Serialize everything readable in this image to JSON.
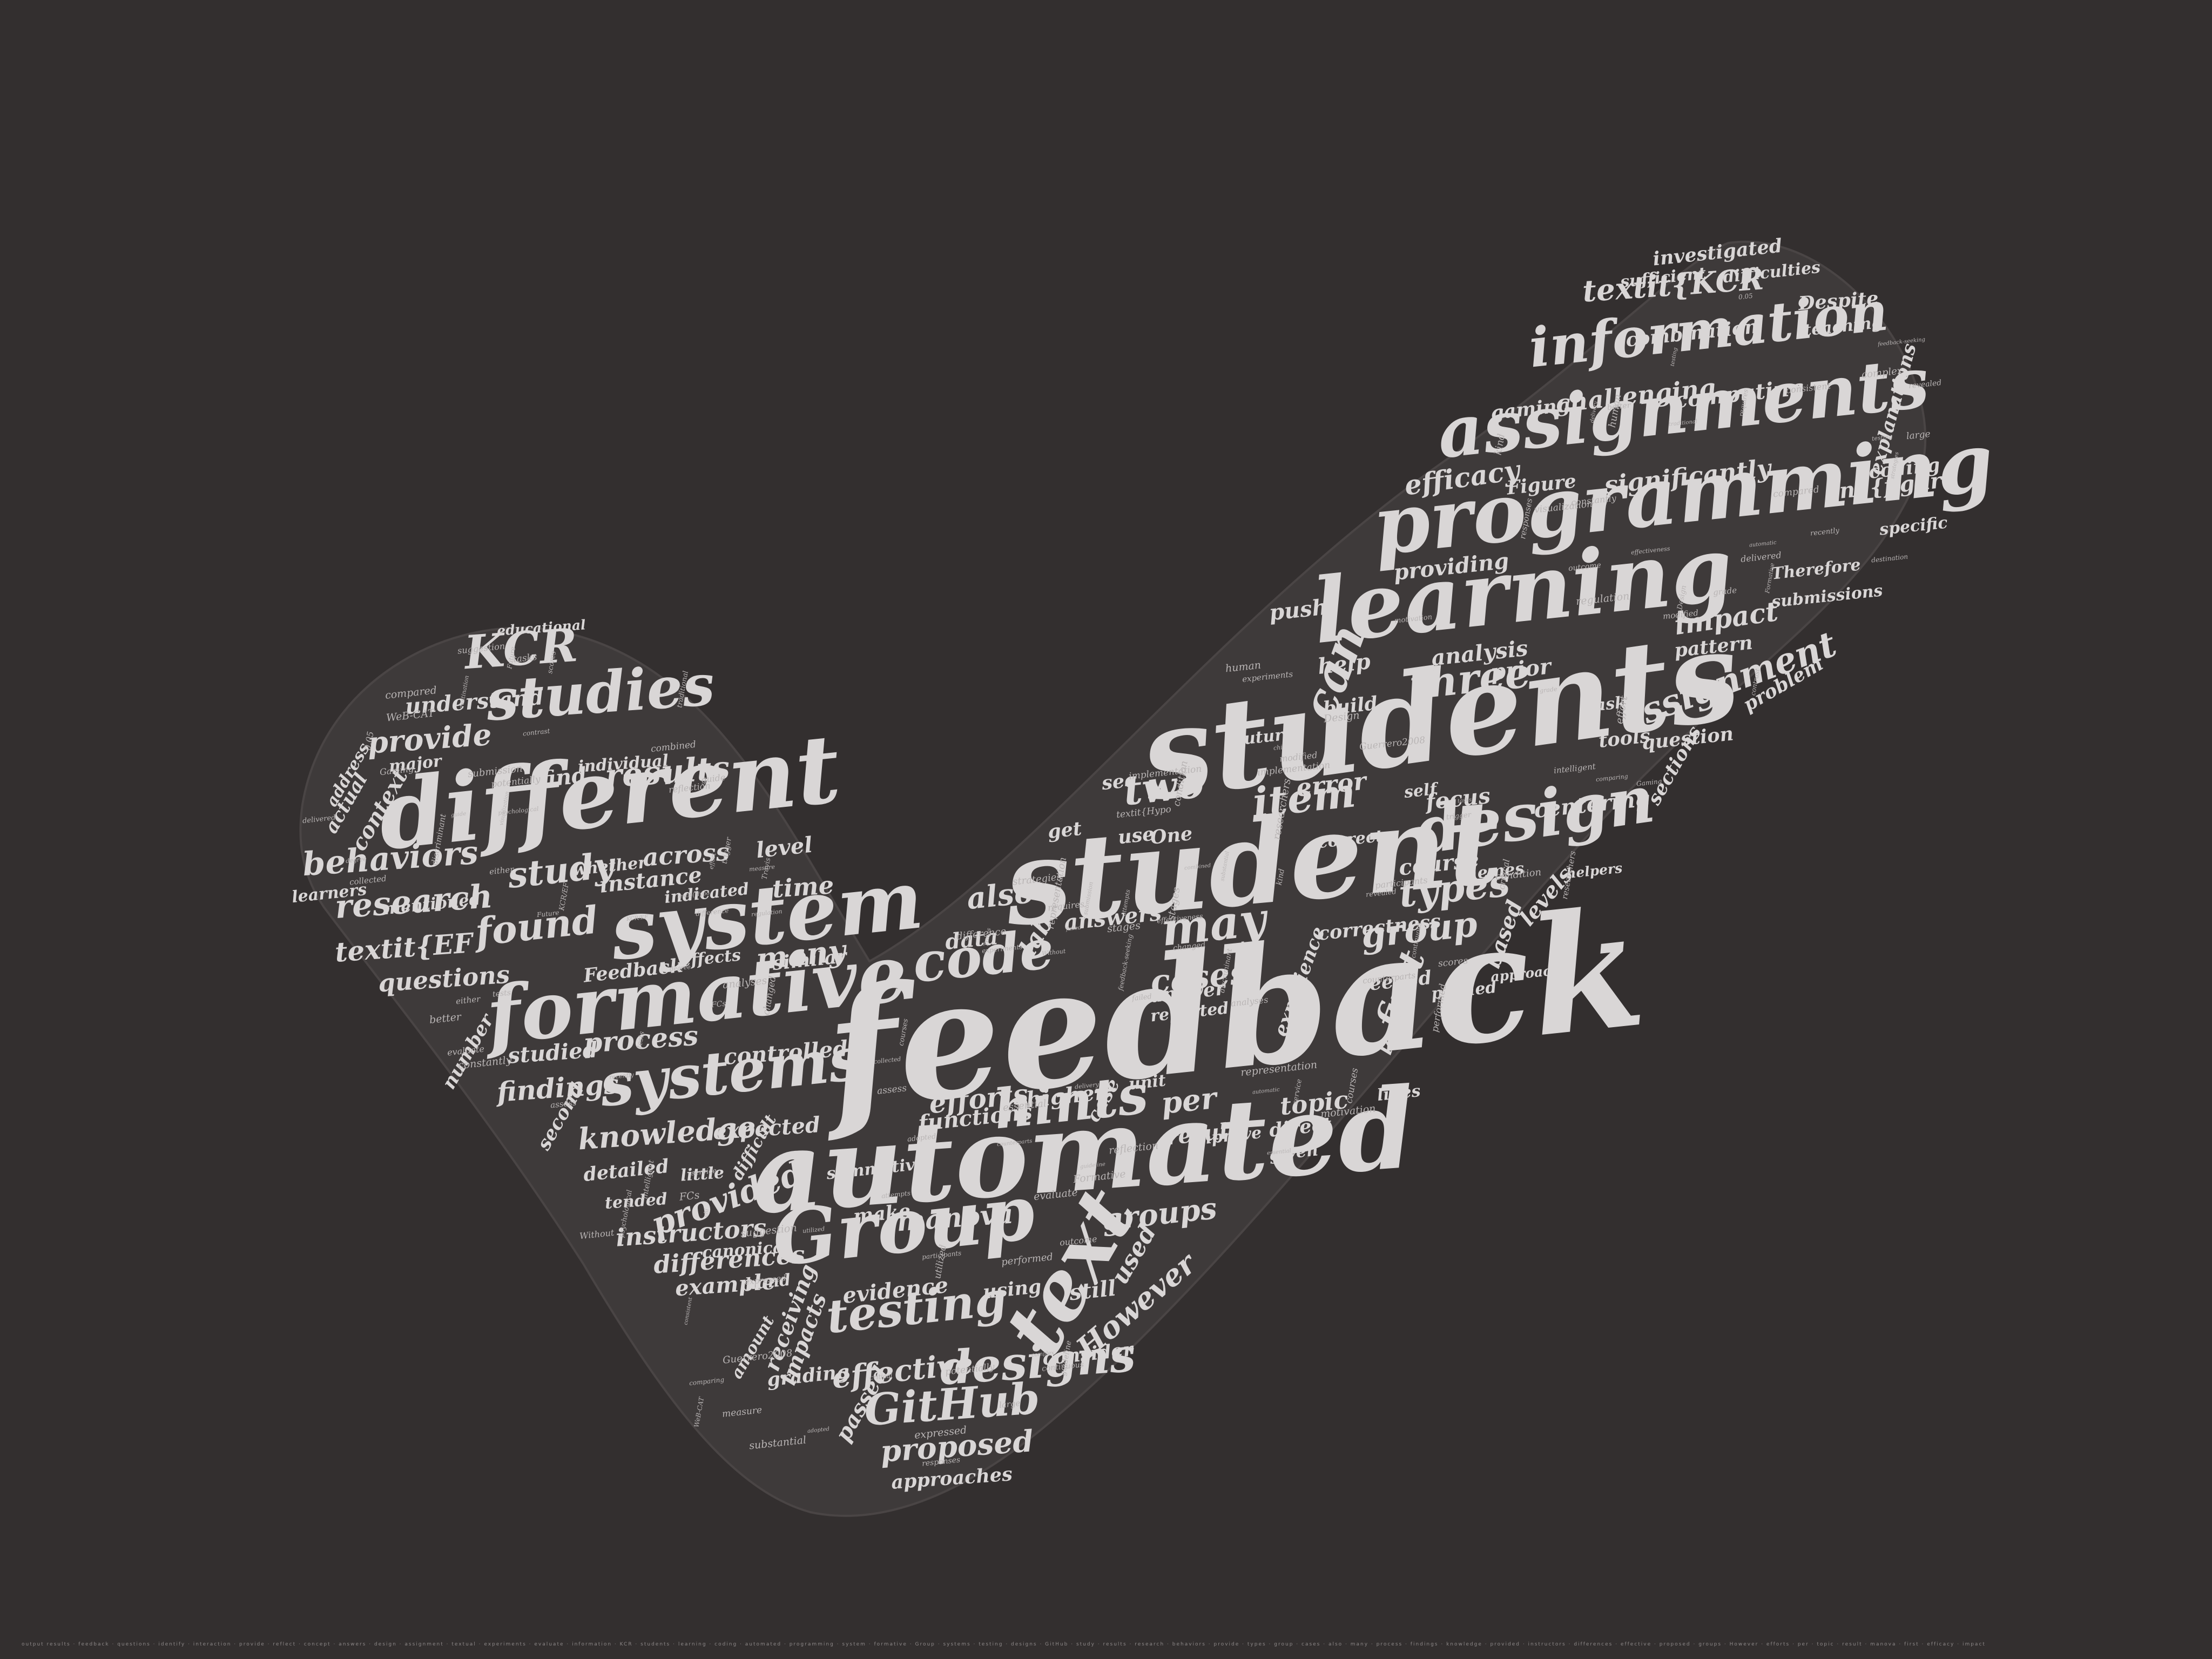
{
  "colors": {
    "background": "#332f2f",
    "shape": "#3e3a3a",
    "text": "#d9d6d6"
  },
  "wordcloud": {
    "large": [
      "feedback",
      "students",
      "automated",
      "student",
      "learning",
      "programming",
      "different",
      "system",
      "formative",
      "assignments",
      "information",
      "Group",
      "systems",
      "text",
      "studies",
      "design",
      "code",
      "hints",
      "testing",
      "designs",
      "GitHub"
    ],
    "medium": [
      "KCR",
      "textit{KCR",
      "may",
      "three",
      "item",
      "two",
      "can",
      "found",
      "study",
      "results",
      "research",
      "behaviors",
      "provide",
      "types",
      "group",
      "cases",
      "also",
      "many",
      "process",
      "findings",
      "knowledge",
      "provided",
      "instructors",
      "differences",
      "effective",
      "proposed",
      "groups",
      "However",
      "efforts",
      "per",
      "topic",
      "result",
      "manova",
      "first",
      "efficacy",
      "impact",
      "assignment",
      "error",
      "centering",
      "lab",
      "across",
      "time",
      "instance",
      "textit{EF",
      "questions",
      "studied",
      "understand",
      "approaches",
      "Figure",
      "end{figure",
      "significantly",
      "challenging",
      "computing",
      "combination",
      "investigated",
      "Despite",
      "providing",
      "analysis",
      "prior",
      "push",
      "help",
      "build",
      "focus",
      "course",
      "answers",
      "data",
      "answer",
      "higher",
      "functions",
      "expected",
      "controlled",
      "evidence",
      "used",
      "still",
      "using",
      "consider",
      "make",
      "example",
      "receiving",
      "impacts",
      "passed",
      "grading",
      "detailed",
      "second",
      "number",
      "context",
      "find",
      "individual",
      "educational",
      "sections",
      "question",
      "tools",
      "task",
      "coding",
      "explanations",
      "specific",
      "submissions",
      "problem",
      "Therefore",
      "pattern",
      "gaming",
      "sufficient",
      "teaching",
      "difficulties",
      "level",
      "similar",
      "effects",
      "Feedback",
      "mentioned",
      "learners",
      "actual",
      "address",
      "major",
      "whether",
      "indicated",
      "little",
      "canonical",
      "tended",
      "summative",
      "difficult",
      "hand",
      "amount",
      "correctness",
      "experience",
      "based",
      "levels",
      "last",
      "needed",
      "lines",
      "direct",
      "given",
      "improve",
      "unit",
      "reported",
      "case",
      "see",
      "get",
      "use",
      "One",
      "correct",
      "error",
      "future",
      "self",
      "themes",
      "helpers",
      "pushed",
      "approach"
    ],
    "small": [
      "feedback-seeking",
      "representation",
      "implementation",
      "substantial",
      "psychological",
      "experiments",
      "comparing",
      "modified",
      "Gaming",
      "strategies",
      "suggestion",
      "combined",
      "researchers",
      "continuous",
      "Formative",
      "consistent",
      "traditional",
      "Travis",
      "delivery",
      "evaluate",
      "condition",
      "participants",
      "reflection",
      "Guerrero2008",
      "textit{Hypo",
      "WeB-CAT",
      "KCR/EF",
      "0.05",
      "FCs",
      "chi",
      "Without",
      "critical",
      "responses",
      "changed",
      "discriminant",
      "effectiveness",
      "expressed",
      "complex",
      "contrast",
      "compared",
      "difference",
      "automatic",
      "essential",
      "Design",
      "Future",
      "stages",
      "destination",
      "scores",
      "submission",
      "requires",
      "attempts",
      "outcome",
      "guideline",
      "intelligent",
      "delivered",
      "collected",
      "counterparts",
      "recently",
      "utilized",
      "analyses",
      "guide",
      "service",
      "testing",
      "degree",
      "trigger",
      "tasks",
      "motivation",
      "adopted",
      "visualization",
      "performed",
      "revealed",
      "measure",
      "either",
      "better",
      "effort",
      "courses",
      "assess",
      "potentially",
      "constantly",
      "regulation",
      "human",
      "failed",
      "kind",
      "tests",
      "large",
      "grade"
    ]
  },
  "bottom_text": "output results · feedback · questions · identify · interaction · provide · reflect · concept · answers · design · assignment · textual · experiments · evaluate · information · KCR · students · learning · coding · automated · programming · system · formative · Group · systems · testing · designs · GitHub · study · results · research · behaviors · provide · types · group · cases · also · many · process · findings · knowledge · provided · instructors · differences · effective · proposed · groups · However · efforts · per · topic · result · manova · first · efficacy · impact"
}
